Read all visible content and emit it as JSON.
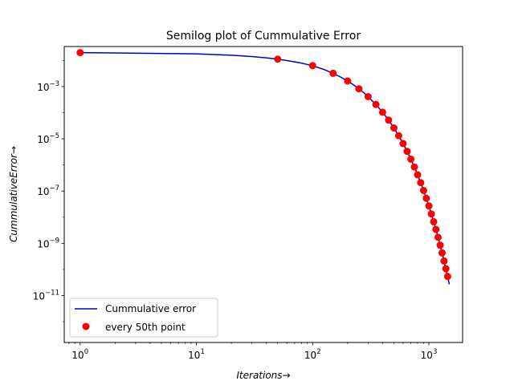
{
  "chart_data": {
    "type": "line",
    "title": "Semilog plot of Cummulative Error",
    "xlabel": "Iterations",
    "ylabel": "CummulativeError",
    "arrow": "→",
    "xscale": "log",
    "yscale": "log",
    "xlim": [
      0.73,
      1950
    ],
    "ylim": [
      1.6e-13,
      0.034
    ],
    "x_ticks": [
      {
        "value": 1,
        "base": "10",
        "exp": "0"
      },
      {
        "value": 10,
        "base": "10",
        "exp": "1"
      },
      {
        "value": 100,
        "base": "10",
        "exp": "2"
      },
      {
        "value": 1000,
        "base": "10",
        "exp": "3"
      }
    ],
    "y_ticks": [
      {
        "value": 1e-11,
        "base": "10",
        "exp": "−11"
      },
      {
        "value": 1e-09,
        "base": "10",
        "exp": "−9"
      },
      {
        "value": 1e-07,
        "base": "10",
        "exp": "−7"
      },
      {
        "value": 1e-05,
        "base": "10",
        "exp": "−5"
      },
      {
        "value": 0.001,
        "base": "10",
        "exp": "−3"
      }
    ],
    "legend": {
      "position": "lower-left",
      "entries": [
        "Cummulative error",
        "every 50th point"
      ]
    },
    "colors": {
      "line": "#0000cc",
      "markers": "#ff0000"
    },
    "series": [
      {
        "name": "Cummulative error",
        "style": "line",
        "x": [
          1,
          10,
          20,
          30,
          40,
          50,
          60,
          70,
          80,
          90,
          100,
          125,
          150,
          175,
          200,
          225,
          250,
          275,
          300,
          350,
          400,
          450,
          500,
          550,
          600,
          650,
          700,
          750,
          800,
          850,
          900,
          950,
          1000,
          1050,
          1100,
          1150,
          1200,
          1250,
          1300,
          1350,
          1400,
          1450,
          1475,
          1500
        ],
        "y": [
          0.0199,
          0.0178,
          0.0158,
          0.0141,
          0.0125,
          0.0112,
          0.0099,
          0.0088,
          0.0079,
          0.007,
          0.0063,
          0.0045,
          0.0032,
          0.00228,
          0.00162,
          0.00115,
          0.00082,
          0.00058,
          0.00041,
          0.000206,
          0.000104,
          5.2e-05,
          2.6e-05,
          1.31e-05,
          6.6e-06,
          3.3e-06,
          1.66e-06,
          8.3e-07,
          4.2e-07,
          2.1e-07,
          1.05e-07,
          5.3e-08,
          2.7e-08,
          1.33e-08,
          6.7e-09,
          3.4e-09,
          1.7e-09,
          8.5e-10,
          4.3e-10,
          2.1e-10,
          1.07e-10,
          5.4e-11,
          3.8e-11,
          2.7e-11
        ]
      },
      {
        "name": "every 50th point",
        "style": "markers",
        "x": [
          1,
          50,
          100,
          150,
          200,
          250,
          300,
          350,
          400,
          450,
          500,
          550,
          600,
          650,
          700,
          750,
          800,
          850,
          900,
          950,
          1000,
          1050,
          1100,
          1150,
          1200,
          1250,
          1300,
          1350,
          1400,
          1450
        ],
        "y": [
          0.0199,
          0.0112,
          0.0063,
          0.0032,
          0.00162,
          0.00082,
          0.00041,
          0.000206,
          0.000104,
          5.2e-05,
          2.6e-05,
          1.31e-05,
          6.6e-06,
          3.3e-06,
          1.66e-06,
          8.3e-07,
          4.2e-07,
          2.1e-07,
          1.05e-07,
          5.3e-08,
          2.7e-08,
          1.33e-08,
          6.7e-09,
          3.4e-09,
          1.7e-09,
          8.5e-10,
          4.3e-10,
          2.1e-10,
          1.07e-10,
          5.4e-11
        ]
      }
    ]
  }
}
